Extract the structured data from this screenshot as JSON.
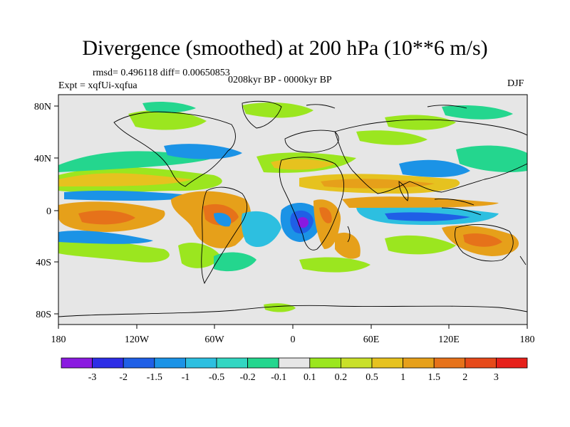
{
  "title": "Divergence (smoothed) at 200 hPa (10**6 m/s)",
  "stats_line": "rmsd= 0.496118 diff= 0.00650853",
  "experiment_line": "Expt = xqfUi-xqfua",
  "period_line": "0208kyr BP - 0000kyr BP",
  "season": "DJF",
  "map": {
    "lat_ticks": [
      "80N",
      "40N",
      "0",
      "40S",
      "80S"
    ],
    "lon_ticks": [
      "180",
      "120W",
      "60W",
      "0",
      "60E",
      "120E",
      "180"
    ],
    "background_color": "#e6e6e6"
  },
  "colorbar": {
    "labels": [
      "-3",
      "-2",
      "-1.5",
      "-1",
      "-0.5",
      "-0.2",
      "-0.1",
      "0.1",
      "0.2",
      "0.5",
      "1",
      "1.5",
      "2",
      "3"
    ],
    "colors": [
      "#8a1ae0",
      "#2d2de6",
      "#1f5fe6",
      "#1b93e6",
      "#2dbfe0",
      "#33d6c2",
      "#24d68e",
      "#e6e6e6",
      "#9be61f",
      "#c9e02a",
      "#e6c21f",
      "#e6a01a",
      "#e6721a",
      "#e64a1a",
      "#e6201a"
    ]
  }
}
